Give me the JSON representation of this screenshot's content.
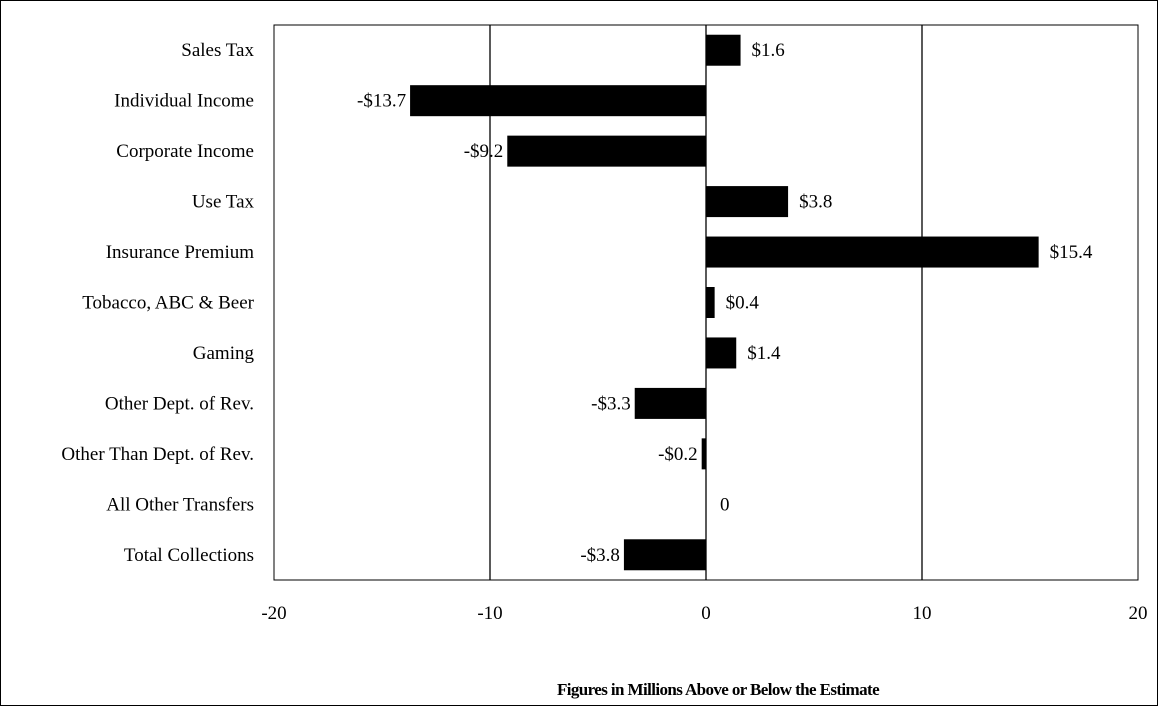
{
  "chart_data": {
    "type": "bar",
    "orientation": "horizontal",
    "categories": [
      "Sales Tax",
      "Individual Income",
      "Corporate Income",
      "Use Tax",
      "Insurance Premium",
      "Tobacco, ABC & Beer",
      "Gaming",
      "Other Dept. of Rev.",
      "Other Than Dept. of Rev.",
      "All Other Transfers",
      "Total Collections"
    ],
    "values": [
      1.6,
      -13.7,
      -9.2,
      3.8,
      15.4,
      0.4,
      1.4,
      -3.3,
      -0.2,
      0,
      -3.8
    ],
    "data_labels": [
      "$1.6",
      "-$13.7",
      "-$9.2",
      "$3.8",
      "$15.4",
      "$0.4",
      "$1.4",
      "-$3.3",
      "-$0.2",
      "0",
      "-$3.8"
    ],
    "xticks": [
      "-20",
      "-10",
      "0",
      "10",
      "20"
    ],
    "xlim": [
      -20,
      20
    ],
    "title": "",
    "xlabel": "Figures in Millions Above or Below the Estimate",
    "ylabel": "",
    "grid": "vertical",
    "bar_color": "#000000"
  }
}
